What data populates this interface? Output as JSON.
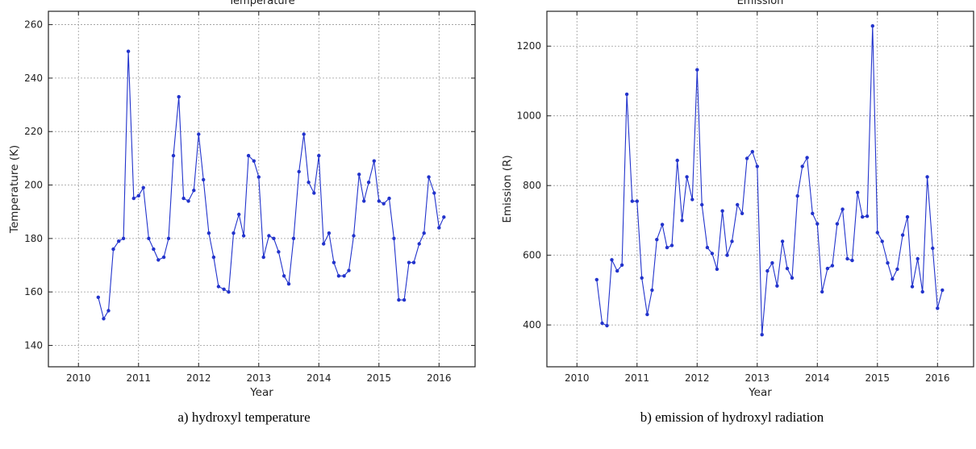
{
  "chart_data": [
    {
      "type": "line",
      "title": "Temperature",
      "xlabel": "Year",
      "ylabel": "Temperature (K)",
      "caption": "a) hydroxyl temperature",
      "xlim": [
        2009.5,
        2016.6
      ],
      "ylim": [
        132,
        265
      ],
      "xticks": [
        2010,
        2011,
        2012,
        2013,
        2014,
        2015,
        2016
      ],
      "yticks": [
        140,
        160,
        180,
        200,
        220,
        240,
        260
      ],
      "grid": true,
      "color": "#2233cc",
      "series": [
        {
          "x": [
            2010.33,
            2010.42,
            2010.5,
            2010.58,
            2010.67,
            2010.75,
            2010.83,
            2010.92,
            2011.0,
            2011.08,
            2011.17,
            2011.25,
            2011.33,
            2011.42,
            2011.5,
            2011.58,
            2011.67,
            2011.75,
            2011.83,
            2011.92,
            2012.0,
            2012.08,
            2012.17,
            2012.25,
            2012.33,
            2012.42,
            2012.5,
            2012.58,
            2012.67,
            2012.75,
            2012.83,
            2012.92,
            2013.0,
            2013.08,
            2013.17,
            2013.25,
            2013.33,
            2013.42,
            2013.5,
            2013.58,
            2013.67,
            2013.75,
            2013.83,
            2013.92,
            2014.0,
            2014.08,
            2014.17,
            2014.25,
            2014.33,
            2014.42,
            2014.5,
            2014.58,
            2014.67,
            2014.75,
            2014.83,
            2014.92,
            2015.0,
            2015.08,
            2015.17,
            2015.25,
            2015.33,
            2015.42,
            2015.5,
            2015.58,
            2015.67,
            2015.75,
            2015.83,
            2015.92,
            2016.0,
            2016.08
          ],
          "y": [
            158,
            150,
            153,
            176,
            179,
            180,
            250,
            195,
            196,
            199,
            180,
            176,
            172,
            173,
            180,
            211,
            233,
            195,
            194,
            198,
            219,
            202,
            182,
            173,
            162,
            161,
            160,
            182,
            189,
            181,
            211,
            209,
            203,
            173,
            181,
            180,
            175,
            166,
            163,
            180,
            205,
            219,
            201,
            197,
            211,
            178,
            182,
            171,
            166,
            166,
            168,
            181,
            204,
            194,
            201,
            209,
            194,
            193,
            195,
            180,
            157,
            157,
            171,
            171,
            178,
            182,
            203,
            197,
            184,
            188
          ]
        }
      ]
    },
    {
      "type": "line",
      "title": "Emission",
      "xlabel": "Year",
      "ylabel": "Emission (R)",
      "caption": "b) emission of hydroxyl radiation",
      "xlim": [
        2009.5,
        2016.6
      ],
      "ylim": [
        280,
        1300
      ],
      "xticks": [
        2010,
        2011,
        2012,
        2013,
        2014,
        2015,
        2016
      ],
      "yticks": [
        400,
        600,
        800,
        1000,
        1200
      ],
      "grid": true,
      "color": "#2233cc",
      "series": [
        {
          "x": [
            2010.33,
            2010.42,
            2010.5,
            2010.58,
            2010.67,
            2010.75,
            2010.83,
            2010.92,
            2011.0,
            2011.08,
            2011.17,
            2011.25,
            2011.33,
            2011.42,
            2011.5,
            2011.58,
            2011.67,
            2011.75,
            2011.83,
            2011.92,
            2012.0,
            2012.08,
            2012.17,
            2012.25,
            2012.33,
            2012.42,
            2012.5,
            2012.58,
            2012.67,
            2012.75,
            2012.83,
            2012.92,
            2013.0,
            2013.08,
            2013.17,
            2013.25,
            2013.33,
            2013.42,
            2013.5,
            2013.58,
            2013.67,
            2013.75,
            2013.83,
            2013.92,
            2014.0,
            2014.08,
            2014.17,
            2014.25,
            2014.33,
            2014.42,
            2014.5,
            2014.58,
            2014.67,
            2014.75,
            2014.83,
            2014.92,
            2015.0,
            2015.08,
            2015.17,
            2015.25,
            2015.33,
            2015.42,
            2015.5,
            2015.58,
            2015.67,
            2015.75,
            2015.83,
            2015.92,
            2016.0,
            2016.08
          ],
          "y": [
            530,
            405,
            398,
            587,
            555,
            572,
            1062,
            755,
            755,
            535,
            430,
            500,
            645,
            688,
            622,
            628,
            872,
            700,
            825,
            760,
            1132,
            745,
            622,
            605,
            560,
            727,
            600,
            640,
            745,
            720,
            878,
            897,
            855,
            372,
            555,
            578,
            512,
            640,
            562,
            535,
            770,
            855,
            880,
            720,
            690,
            495,
            562,
            570,
            690,
            732,
            590,
            585,
            780,
            710,
            712,
            1258,
            665,
            640,
            578,
            532,
            560,
            658,
            710,
            510,
            590,
            495,
            825,
            620,
            448,
            500
          ]
        }
      ]
    }
  ]
}
